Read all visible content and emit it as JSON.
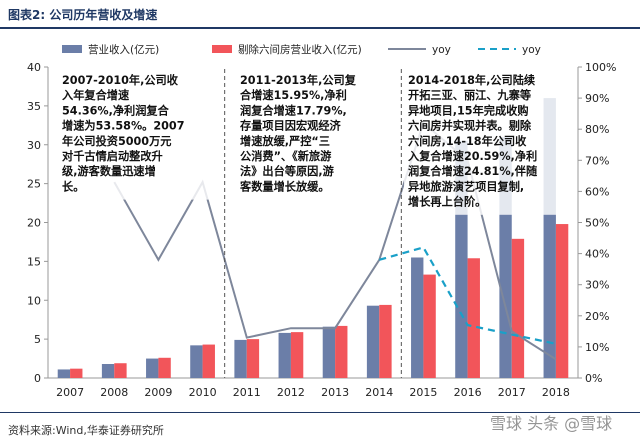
{
  "header": {
    "title": "图表2:  公司历年营收及增速"
  },
  "footer": {
    "source": "资料来源:Wind,华泰证券研究所",
    "watermark": "雪球  头条 @雪球"
  },
  "colors": {
    "revenue": "#6b7ea8",
    "revenue_ex": "#f2555a",
    "yoy_revenue": "#7e879b",
    "yoy_ex": "#1aa0c8",
    "title": "#1f3864"
  },
  "chart_data": {
    "type": "bar",
    "categories": [
      "2007",
      "2008",
      "2009",
      "2010",
      "2011",
      "2012",
      "2013",
      "2014",
      "2015",
      "2016",
      "2017",
      "2018"
    ],
    "series": [
      {
        "name": "营业收入(亿元)",
        "kind": "bar",
        "axis": "left",
        "values": [
          1.1,
          1.8,
          2.5,
          4.2,
          4.9,
          5.8,
          6.6,
          9.3,
          15.5,
          30.5,
          31.0,
          36.0
        ]
      },
      {
        "name": "剔除六间房营业收入(亿元)",
        "kind": "bar",
        "axis": "left",
        "values": [
          1.2,
          1.9,
          2.6,
          4.3,
          5.0,
          5.9,
          6.7,
          9.4,
          13.3,
          15.4,
          17.9,
          19.8
        ]
      },
      {
        "name": "yoy",
        "kind": "line",
        "axis": "right",
        "values": [
          null,
          63,
          38,
          63,
          13,
          16,
          16,
          38,
          82,
          70,
          15,
          6
        ]
      },
      {
        "name": "yoy",
        "kind": "dashed-line",
        "axis": "right",
        "values": [
          null,
          null,
          null,
          null,
          null,
          null,
          null,
          38,
          42,
          17,
          14,
          11
        ]
      }
    ],
    "y_left": {
      "min": 0,
      "max": 40,
      "ticks": [
        "0",
        "5",
        "10",
        "15",
        "20",
        "25",
        "30",
        "35",
        "40"
      ]
    },
    "y_right": {
      "min": 0,
      "max": 100,
      "ticks": [
        "0%",
        "10%",
        "20%",
        "30%",
        "40%",
        "50%",
        "60%",
        "70%",
        "80%",
        "90%",
        "100%"
      ]
    },
    "legend_position": "top",
    "annotations": [
      {
        "lines": [
          "2007-2010年,公司收",
          "入年复合增速",
          "54.36%,净利润复合",
          "增速为53.58%。2007",
          "年公司投资5000万元",
          "对千古情启动整改升",
          "级,游客数量迅速增",
          "长。"
        ]
      },
      {
        "lines": [
          "2011-2013年,公司复",
          "合增速15.95%,净利",
          "润复合增速17.79%,",
          "存量项目因宏观经济",
          "增速放缓,严控“三",
          "公消费”、《新旅游",
          "法》出台等原因,游",
          "客数量增长放缓。"
        ]
      },
      {
        "lines": [
          "2014-2018年,公司陆续",
          "开拓三亚、丽江、九寨等",
          "异地项目,15年完成收购",
          "六间房并实现并表。剔除",
          "六间房,14-18年公司收",
          "入复合增速20.59%,净利",
          "润复合增速24.81%,伴随",
          "异地旅游演艺项目复制,",
          "增长再上台阶。"
        ]
      }
    ]
  }
}
